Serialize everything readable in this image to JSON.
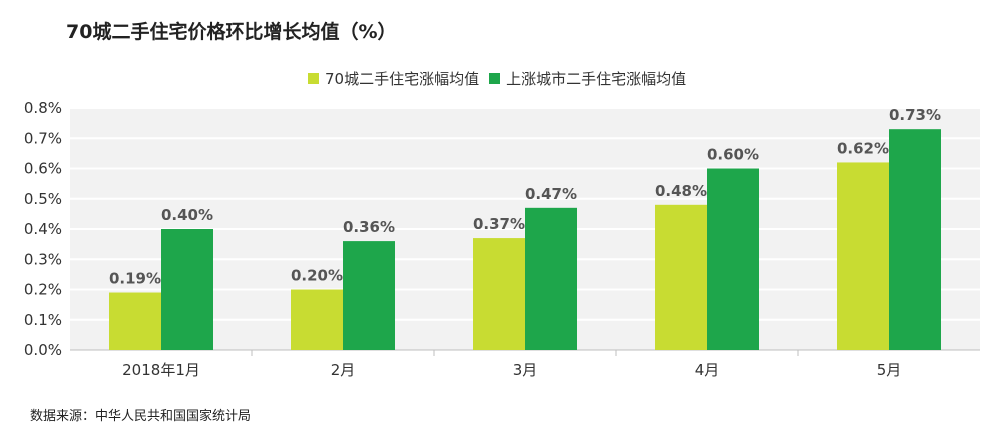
{
  "title": "70城二手住宅价格环比增长均值（%）",
  "source": "数据来源：中华人民共和国国家统计局",
  "colors": {
    "series1": "#c8dc32",
    "series2": "#1ea64b",
    "plot_bg": "#f2f2f2",
    "grid": "#ffffff"
  },
  "chart_data": {
    "type": "bar",
    "categories": [
      "2018年1月",
      "2月",
      "3月",
      "4月",
      "5月"
    ],
    "series": [
      {
        "name": "70城二手住宅涨幅均值",
        "values": [
          0.19,
          0.2,
          0.37,
          0.48,
          0.62
        ],
        "labels": [
          "0.19%",
          "0.20%",
          "0.37%",
          "0.48%",
          "0.62%"
        ]
      },
      {
        "name": "上涨城市二手住宅涨幅均值",
        "values": [
          0.4,
          0.36,
          0.47,
          0.6,
          0.73
        ],
        "labels": [
          "0.40%",
          "0.36%",
          "0.47%",
          "0.60%",
          "0.73%"
        ]
      }
    ],
    "ylim": [
      0,
      0.8
    ],
    "yticks": [
      "0.0%",
      "0.1%",
      "0.2%",
      "0.3%",
      "0.4%",
      "0.5%",
      "0.6%",
      "0.7%",
      "0.8%"
    ],
    "legend": "top-center",
    "grid": true
  }
}
